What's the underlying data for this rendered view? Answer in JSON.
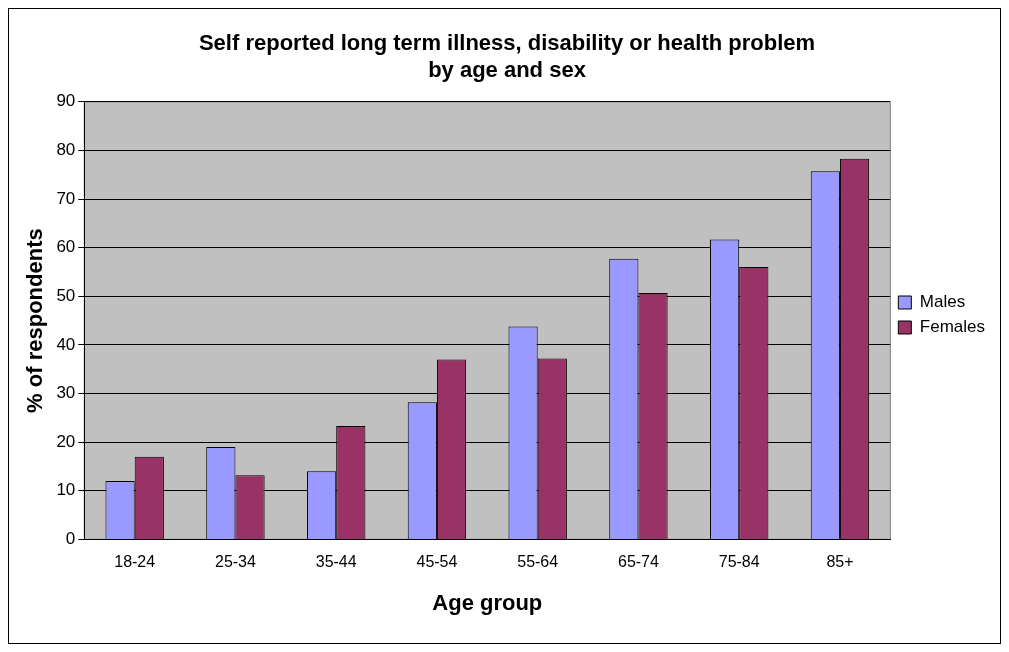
{
  "chart_data": {
    "type": "bar",
    "title": "Self reported long term illness, disability or health problem by age and sex",
    "xlabel": "Age group",
    "ylabel": "% of respondents",
    "categories": [
      "18-24",
      "25-34",
      "35-44",
      "45-54",
      "55-64",
      "65-74",
      "75-84",
      "85+"
    ],
    "series": [
      {
        "name": "Males",
        "color": "#9999ff",
        "values": [
          12,
          19,
          14,
          28.2,
          43.8,
          57.7,
          61.7,
          75.7
        ]
      },
      {
        "name": "Females",
        "color": "#993366",
        "values": [
          17,
          13.2,
          23.3,
          37,
          37.2,
          50.7,
          56,
          78.3
        ]
      }
    ],
    "ylim": [
      0,
      90
    ],
    "yticks": [
      0,
      10,
      20,
      30,
      40,
      50,
      60,
      70,
      80,
      90
    ],
    "grid": "y",
    "legend": "right"
  }
}
